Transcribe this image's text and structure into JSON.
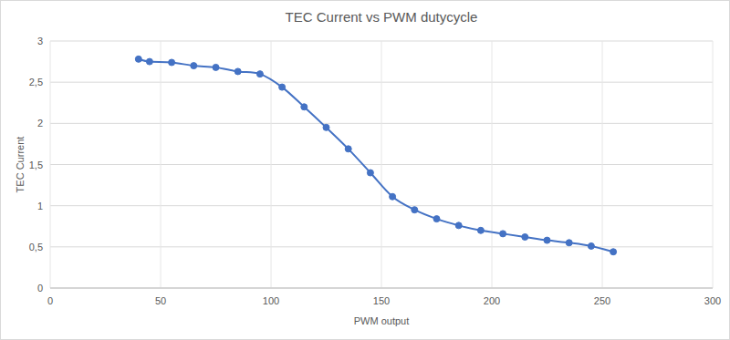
{
  "chart_data": {
    "type": "line",
    "title": "TEC Current vs PWM dutycycle",
    "x_label": "PWM output",
    "y_label": "TEC Current",
    "x": [
      40,
      45,
      55,
      65,
      75,
      85,
      95,
      105,
      115,
      125,
      135,
      145,
      155,
      165,
      175,
      185,
      195,
      205,
      215,
      225,
      235,
      245,
      255
    ],
    "series": [
      {
        "name": "TEC Current",
        "color": "#4472c4",
        "marker": "circle",
        "line_style": "smooth",
        "values": [
          2.78,
          2.75,
          2.74,
          2.7,
          2.68,
          2.63,
          2.6,
          2.44,
          2.2,
          1.95,
          1.69,
          1.4,
          1.11,
          0.95,
          0.84,
          0.76,
          0.7,
          0.66,
          0.62,
          0.58,
          0.55,
          0.51,
          0.44
        ]
      }
    ],
    "xlim": [
      0,
      300
    ],
    "xticks": [
      0,
      50,
      100,
      150,
      200,
      250,
      300
    ],
    "ylim": [
      0,
      3
    ],
    "yticks": [
      0,
      {
        "value": 0.5,
        "label": "0,5"
      },
      1,
      {
        "value": 1.5,
        "label": "1,5"
      },
      2,
      {
        "value": 2.5,
        "label": "2,5"
      },
      3
    ],
    "grid": true
  }
}
